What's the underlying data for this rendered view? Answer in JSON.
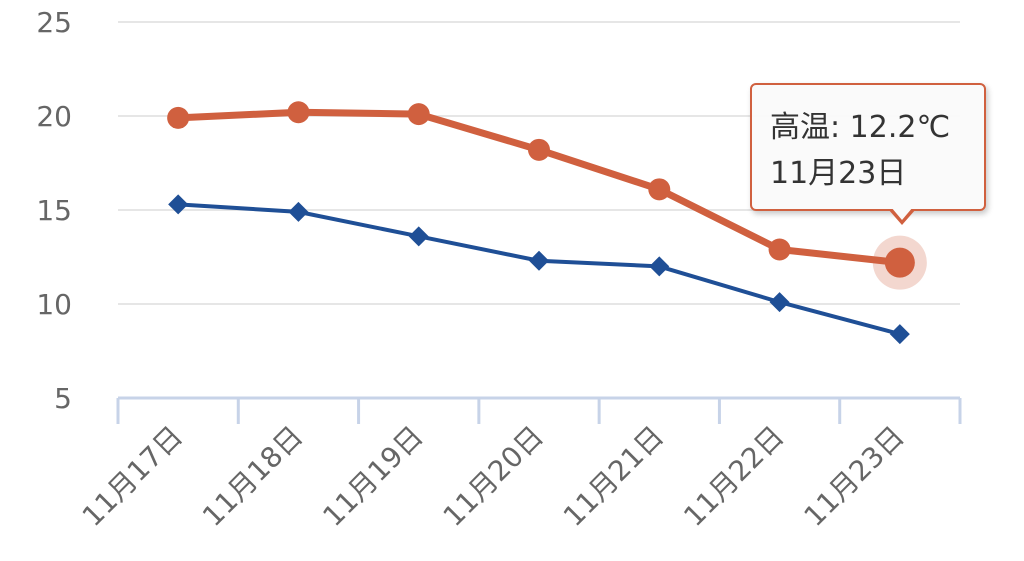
{
  "chart_data": {
    "type": "line",
    "categories": [
      "11月17日",
      "11月18日",
      "11月19日",
      "11月20日",
      "11月21日",
      "11月22日",
      "11月23日"
    ],
    "series": [
      {
        "name": "高温",
        "color": "#d0603f",
        "marker": "circle",
        "values": [
          19.9,
          20.2,
          20.1,
          18.2,
          16.1,
          12.9,
          12.2
        ]
      },
      {
        "color": "#1f4f96",
        "marker": "diamond",
        "values": [
          15.3,
          14.9,
          13.6,
          12.3,
          12.0,
          10.1,
          8.4
        ]
      }
    ],
    "yticks": [
      5,
      10,
      15,
      20,
      25
    ],
    "ylim": [
      5,
      25
    ],
    "grid": true,
    "gridColor": "#e6e6e6",
    "axisColor": "#c7d3e8",
    "tooltip": {
      "line1": "高温: 12.2℃",
      "line2": "11月23日",
      "highlight_series": 0,
      "highlight_index": 6
    }
  }
}
